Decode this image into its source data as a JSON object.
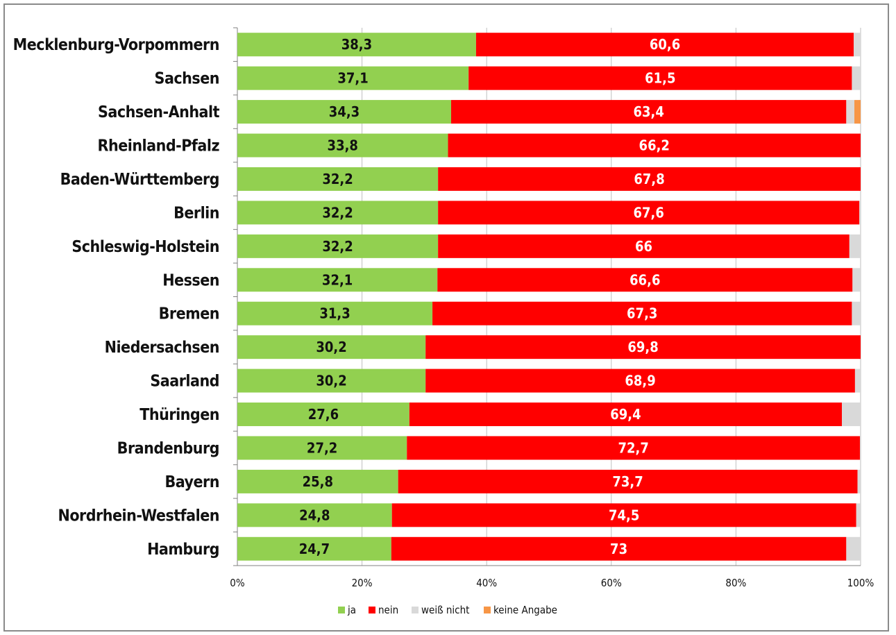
{
  "chart_data": {
    "type": "bar",
    "orientation": "horizontal",
    "stacked": "percent",
    "categories": [
      "Mecklenburg-Vorpommern",
      "Sachsen",
      "Sachsen-Anhalt",
      "Rheinland-Pfalz",
      "Baden-Württemberg",
      "Berlin",
      "Schleswig-Holstein",
      "Hessen",
      "Bremen",
      "Niedersachsen",
      "Saarland",
      "Thüringen",
      "Brandenburg",
      "Bayern",
      "Nordrhein-Westfalen",
      "Hamburg"
    ],
    "series": [
      {
        "name": "ja",
        "color": "#92d050",
        "values": [
          38.3,
          37.1,
          34.3,
          33.8,
          32.2,
          32.2,
          32.2,
          32.1,
          31.3,
          30.2,
          30.2,
          27.6,
          27.2,
          25.8,
          24.8,
          24.7
        ]
      },
      {
        "name": "nein",
        "color": "#ff0000",
        "values": [
          60.6,
          61.5,
          63.4,
          66.2,
          67.8,
          67.6,
          66,
          66.6,
          67.3,
          69.8,
          68.9,
          69.4,
          72.7,
          73.7,
          74.5,
          73
        ]
      },
      {
        "name": "weiß nicht",
        "color": "#d9d9d9",
        "values": [
          1.1,
          1.4,
          1.3,
          0,
          0,
          0.2,
          1.8,
          1.3,
          1.4,
          0,
          0.9,
          3.0,
          0.1,
          0.5,
          0.7,
          2.3
        ]
      },
      {
        "name": "keine Angabe",
        "color": "#f79646",
        "values": [
          0,
          0,
          1.0,
          0,
          0,
          0,
          0,
          0,
          0,
          0,
          0,
          0,
          0,
          0,
          0,
          0
        ]
      }
    ],
    "data_labels": {
      "ja": [
        "38,3",
        "37,1",
        "34,3",
        "33,8",
        "32,2",
        "32,2",
        "32,2",
        "32,1",
        "31,3",
        "30,2",
        "30,2",
        "27,6",
        "27,2",
        "25,8",
        "24,8",
        "24,7"
      ],
      "nein": [
        "60,6",
        "61,5",
        "63,4",
        "66,2",
        "67,8",
        "67,6",
        "66",
        "66,6",
        "67,3",
        "69,8",
        "68,9",
        "69,4",
        "72,7",
        "73,7",
        "74,5",
        "73"
      ]
    },
    "xlim": [
      0,
      100
    ],
    "x_ticks": [
      0,
      20,
      40,
      60,
      80,
      100
    ],
    "x_tick_labels": [
      "0%",
      "20%",
      "40%",
      "60%",
      "80%",
      "100%"
    ],
    "grid": true,
    "legend": "bottom",
    "title": "",
    "xlabel": "",
    "ylabel": ""
  }
}
